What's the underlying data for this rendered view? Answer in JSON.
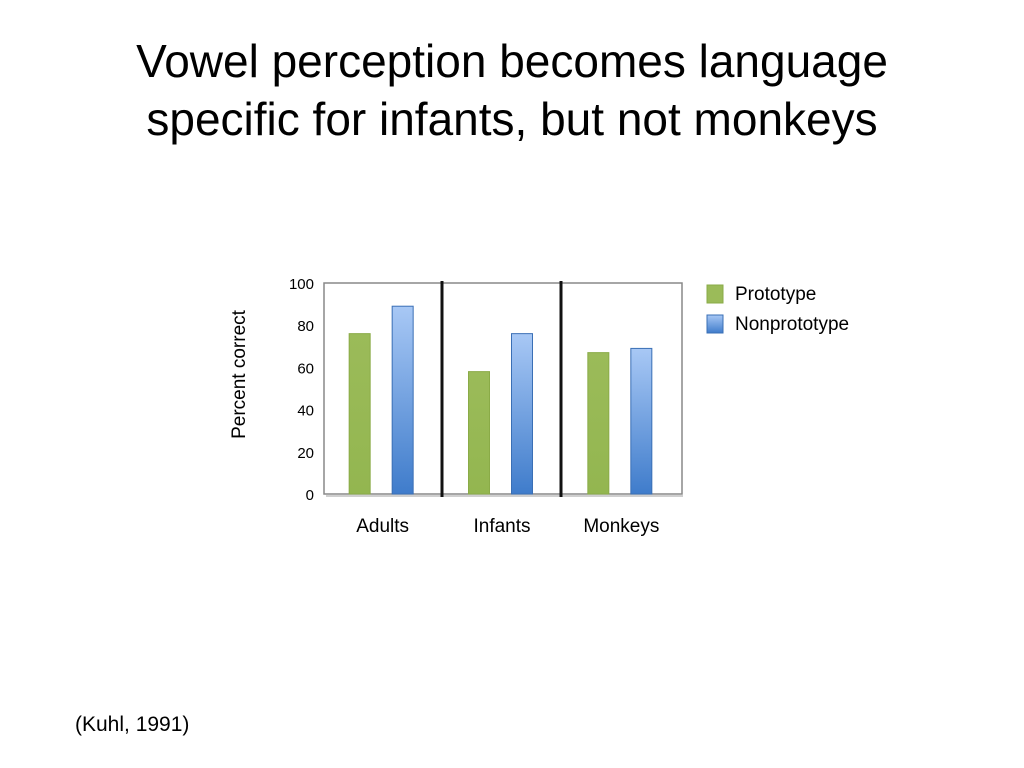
{
  "slide": {
    "title_line1": "Vowel perception becomes language",
    "title_line2": "specific for infants, but not monkeys",
    "citation": "(Kuhl, 1991)"
  },
  "chart_data": {
    "type": "bar",
    "categories": [
      "Adults",
      "Infants",
      "Monkeys"
    ],
    "series": [
      {
        "name": "Prototype",
        "values": [
          76,
          58,
          67
        ],
        "color": "#9bbb59"
      },
      {
        "name": "Nonprototype",
        "values": [
          89,
          76,
          69
        ],
        "color": "#4f81bd"
      }
    ],
    "ylabel": "Percent correct",
    "xlabel": "",
    "ylim": [
      0,
      100
    ],
    "yticks": [
      0,
      20,
      40,
      60,
      80,
      100
    ],
    "grid": false,
    "legend": "right",
    "group_separators": true
  }
}
